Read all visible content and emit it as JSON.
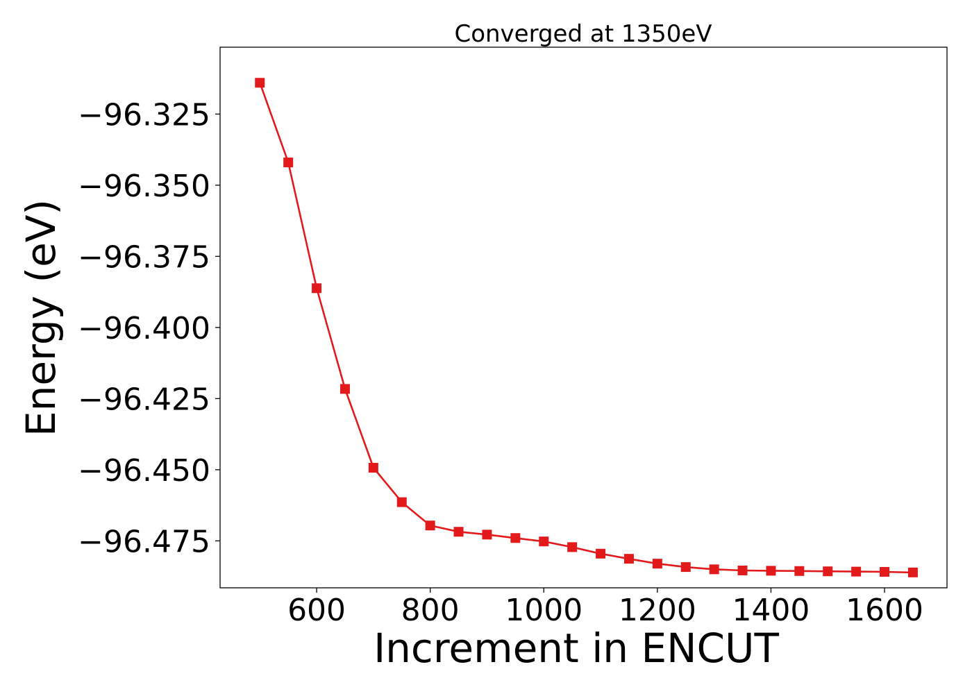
{
  "chart_data": {
    "type": "line",
    "title": "Converged at 1350eV",
    "xlabel": "Increment in ENCUT",
    "ylabel": "Energy (eV)",
    "xlim": [
      430,
      1710
    ],
    "ylim": [
      -96.4915,
      -96.3015
    ],
    "xticks": [
      600,
      800,
      1000,
      1200,
      1400,
      1600
    ],
    "xtick_labels": [
      "600",
      "800",
      "1000",
      "1200",
      "1400",
      "1600"
    ],
    "yticks": [
      -96.325,
      -96.35,
      -96.375,
      -96.4,
      -96.425,
      -96.45,
      -96.475
    ],
    "ytick_labels": [
      "−96.325",
      "−96.350",
      "−96.375",
      "−96.400",
      "−96.425",
      "−96.450",
      "−96.475"
    ],
    "grid": false,
    "marker": "square",
    "series": [
      {
        "color": "#e31a1c",
        "x": [
          500,
          550,
          600,
          650,
          700,
          750,
          800,
          850,
          900,
          950,
          1000,
          1050,
          1100,
          1150,
          1200,
          1250,
          1300,
          1350,
          1400,
          1450,
          1500,
          1550,
          1600,
          1650
        ],
        "y": [
          -96.314,
          -96.342,
          -96.3862,
          -96.4216,
          -96.4493,
          -96.4614,
          -96.4696,
          -96.4718,
          -96.4728,
          -96.474,
          -96.4752,
          -96.4772,
          -96.4795,
          -96.4813,
          -96.483,
          -96.4842,
          -96.485,
          -96.4854,
          -96.4855,
          -96.4856,
          -96.4857,
          -96.4858,
          -96.4859,
          -96.4861
        ]
      }
    ]
  }
}
